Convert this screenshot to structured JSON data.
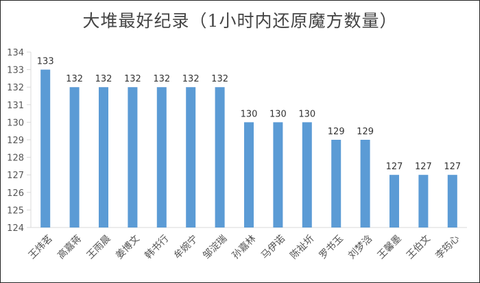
{
  "chart_data": {
    "type": "bar",
    "title": "大堆最好纪录（1小时内还原魔方数量）",
    "categories": [
      "王炜茗",
      "高嘉蒋",
      "王雨晨",
      "姜博文",
      "韩书行",
      "牟婉宁",
      "邹淀瑞",
      "孙嘉林",
      "马伊诺",
      "陈祉圻",
      "罗书玉",
      "刘梦浛",
      "王馨墨",
      "王伯文",
      "李筠心"
    ],
    "values": [
      133,
      132,
      132,
      132,
      132,
      132,
      132,
      130,
      130,
      130,
      129,
      129,
      127,
      127,
      127
    ],
    "ylim": [
      124,
      134
    ],
    "yticks": [
      124,
      125,
      126,
      127,
      128,
      129,
      130,
      131,
      132,
      133,
      134
    ],
    "xlabel": "",
    "ylabel": "",
    "grid": false,
    "data_labels": true,
    "bar_color": "#5B9BD5"
  }
}
